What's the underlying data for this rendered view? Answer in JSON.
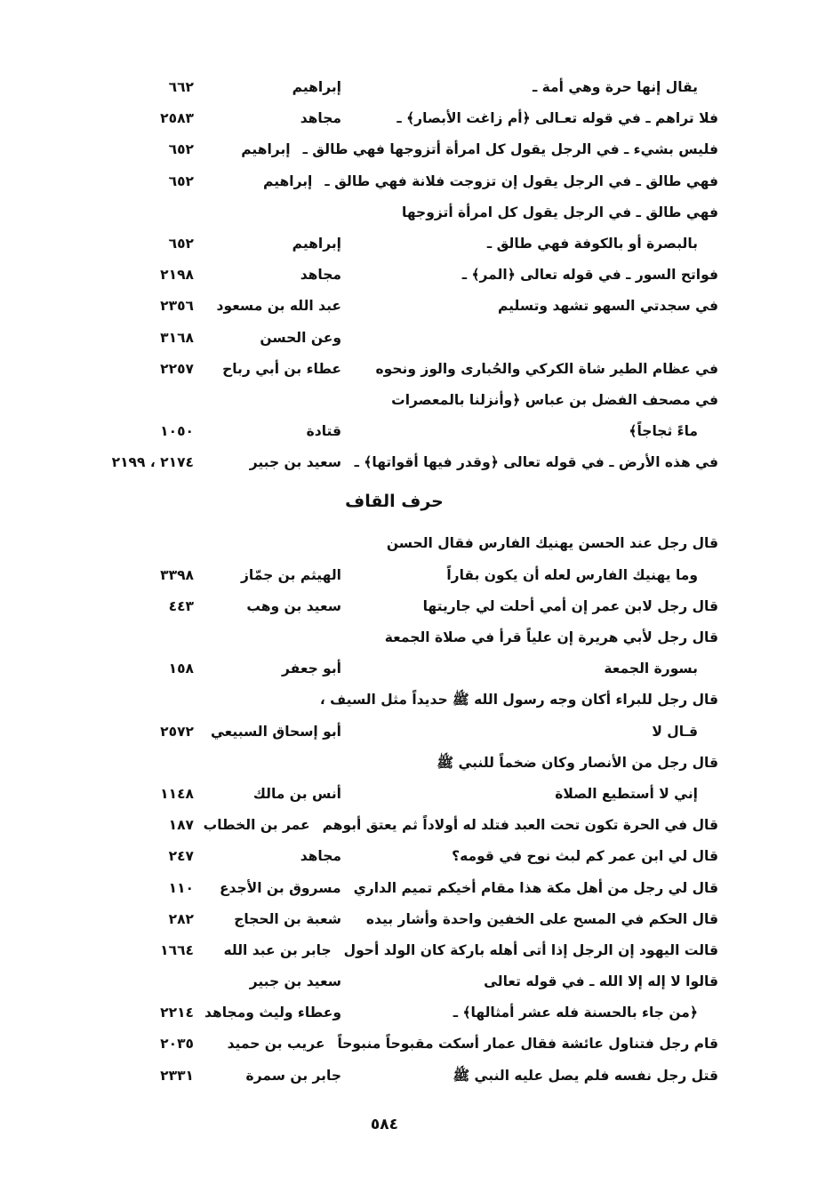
{
  "section_a": [
    {
      "text": "يقال إنها حرة وهي أمة ـ",
      "narrator": "إبراهيم",
      "number": "٦٦٢",
      "continued": true
    },
    {
      "text": "فلا تراهم ـ في قوله تعـالى ﴿أم زاغت الأبصار﴾ ـ",
      "narrator": "مجاهد",
      "number": "٢٥٨٣"
    },
    {
      "text": "فليس بشيء ـ في الرجل يقول كل امرأة أتزوجها فهي طالق ـ",
      "narrator": "إبراهيم",
      "number": "٦٥٢"
    },
    {
      "text": "فهي طالق ـ في الرجل يقول إن تزوجت فلانة فهي طالق ـ",
      "narrator": "إبراهيم",
      "number": "٦٥٢"
    },
    {
      "text": "فهي طالق ـ في الرجل يقول كل امرأة أتزوجها",
      "narrator": "",
      "number": ""
    },
    {
      "text": "بالبصرة أو بالكوفة فهي طالق ـ",
      "narrator": "إبراهيم",
      "number": "٦٥٢",
      "continued": true
    },
    {
      "text": "فواتح السور ـ في قوله تعالى ﴿المر﴾ ـ",
      "narrator": "مجاهد",
      "number": "٢١٩٨"
    },
    {
      "text": "في سجدتي السهو تشهد وتسليم",
      "narrator": "عبد الله بن مسعود",
      "number": "٢٣٥٦"
    },
    {
      "text": "",
      "narrator": "وعن الحسن",
      "number": "٣١٦٨"
    },
    {
      "text": "في عظام الطير شاة الكركي والحُبارى والوز ونحوه",
      "narrator": "عطاء بن أبي رباح",
      "number": "٢٢٥٧"
    },
    {
      "text": "في مصحف الفضل بن عباس ﴿وأنزلنا بالمعصرات",
      "narrator": "",
      "number": ""
    },
    {
      "text": "ماءً ثجاجاً﴾",
      "narrator": "قتادة",
      "number": "١٠٥٠",
      "continued": true
    },
    {
      "text": "في هذه الأرض ـ في قوله تعالى ﴿وقدر فيها أقواتها﴾ ـ",
      "narrator": "سعيد بن جبير",
      "number": "٢١٧٤ ، ٢١٩٩"
    }
  ],
  "section_heading": "حرف القاف",
  "section_b": [
    {
      "text": "قال رجل عند الحسن يهنيك الفارس فقال الحسن",
      "narrator": "",
      "number": ""
    },
    {
      "text": "وما يهنيك الفارس لعله أن يكون بقاراً",
      "narrator": "الهيثم بن جمّاز",
      "number": "٣٣٩٨",
      "continued": true
    },
    {
      "text": "قال رجل لابن عمر  إن أمي أحلت لي جاريتها",
      "narrator": "سعيد بن وهب",
      "number": "٤٤٣"
    },
    {
      "text": "قال رجل لأبي هريرة إن علياً قرأ في صلاة الجمعة",
      "narrator": "",
      "number": ""
    },
    {
      "text": "بسورة الجمعة",
      "narrator": "أبو جعفر",
      "number": "١٥٨",
      "continued": true
    },
    {
      "text": "قال رجل للبراء أكان وجه رسول الله ﷺ حديداً مثل السيف ،",
      "narrator": "",
      "number": ""
    },
    {
      "text": "قـال لا",
      "narrator": "أبو إسحاق السبيعي",
      "number": "٢٥٧٢",
      "continued": true
    },
    {
      "text": "قال رجل من الأنصار وكان ضخماً للنبي ﷺ",
      "narrator": "",
      "number": ""
    },
    {
      "text": "إني لا أستطيع الصلاة",
      "narrator": "أنس بن مالك",
      "number": "١١٤٨",
      "continued": true
    },
    {
      "text": "قال في الحرة تكون تحت العبد فتلد له أولاداً ثم يعتق أبوهم",
      "narrator": "عمر بن الخطاب",
      "number": "١٨٧"
    },
    {
      "text": "قال لي ابن عمر كم لبث نوح في قومه؟",
      "narrator": "مجاهد",
      "number": "٢٤٧"
    },
    {
      "text": "قال لي رجل من أهل مكة هذا مقام أخيكم تميم الداري",
      "narrator": "مسروق بن الأجدع",
      "number": "١١٠"
    },
    {
      "text": "قال الحكم في المسح على الخفين واحدة وأشار بيده",
      "narrator": "شعبة بن الحجاج",
      "number": "٢٨٢"
    },
    {
      "text": "قالت اليهود  إن الرجل إذا أتى أهله باركة كان الولد أحول",
      "narrator": "جابر بن عبد الله",
      "number": "١٦٦٤"
    },
    {
      "text": "قالوا لا إله إلا الله ـ في قوله تعالى",
      "narrator": "سعيد بن جبير",
      "number": ""
    },
    {
      "text": "﴿من جاء بالحسنة فله عشر أمثالها﴾ ـ",
      "narrator": "وعطاء وليث ومجاهد",
      "number": "٢٢١٤",
      "continued": true
    },
    {
      "text": "قام رجل فتناول عائشة فقال عمار أسكت مقبوحاً منبوحاً",
      "narrator": "عريب بن حميد",
      "number": "٢٠٣٥"
    },
    {
      "text": "قتل رجل نفسه فلم يصل عليه النبي ﷺ",
      "narrator": "جابر بن سمرة",
      "number": "٢٣٣١"
    }
  ],
  "page_number": "٥٨٤"
}
